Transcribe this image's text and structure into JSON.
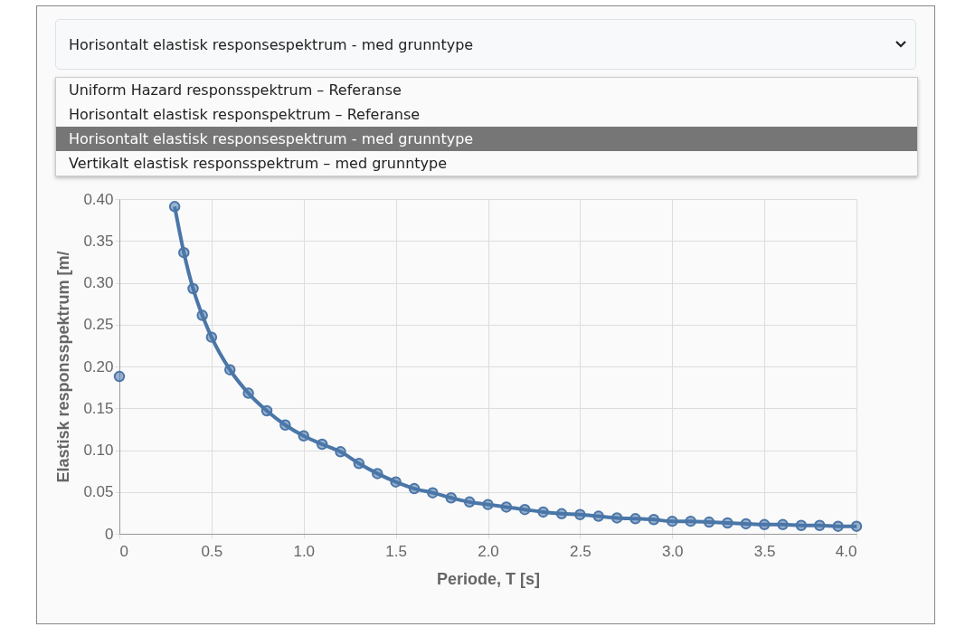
{
  "chart_data": {
    "type": "line",
    "title": "Horisontalt elastisk responsespektrum - med grunntype",
    "annotations": [
      "Uniform Hazard responsspektrum – Referanse",
      "Horisontalt elastisk responspektrum – Referanse",
      "Horisontalt elastisk responsespektrum - med grunntype",
      "Vertikalt elastisk responsspektrum – med grunntype"
    ],
    "xlabel": "Periode, T [s]",
    "ylabel": "Elastisk responsspektrum [m/",
    "x": [
      0,
      0.1,
      0.3,
      0.35,
      0.4,
      0.45,
      0.5,
      0.6,
      0.7,
      0.8,
      0.9,
      1.0,
      1.1,
      1.2,
      1.3,
      1.4,
      1.5,
      1.6,
      1.7,
      1.8,
      1.9,
      2.0,
      2.1,
      2.2,
      2.3,
      2.4,
      2.5,
      2.6,
      2.7,
      2.8,
      2.9,
      3.0,
      3.1,
      3.2,
      3.3,
      3.4,
      3.5,
      3.6,
      3.7,
      3.8,
      3.9,
      4.0
    ],
    "series": [
      {
        "color": "#4a76a8",
        "values": [
          0.188,
          null,
          0.391,
          0.336,
          0.293,
          0.261,
          0.235,
          0.196,
          0.168,
          0.147,
          0.13,
          0.117,
          0.107,
          0.098,
          0.084,
          0.072,
          0.062,
          0.054,
          0.049,
          0.043,
          0.038,
          0.035,
          0.032,
          0.029,
          0.026,
          0.024,
          0.023,
          0.021,
          0.019,
          0.018,
          0.017,
          0.015,
          0.015,
          0.014,
          0.013,
          0.012,
          0.011,
          0.011,
          0.01,
          0.01,
          0.009,
          0.009
        ]
      }
    ],
    "xlim": [
      0,
      4
    ],
    "xticks": [
      0,
      0.5,
      {
        "value": 1,
        "label": "1.0"
      },
      1.5,
      {
        "value": 2,
        "label": "2.0"
      },
      2.5,
      {
        "value": 3,
        "label": "3.0"
      },
      3.5,
      {
        "value": 4,
        "label": "4.0"
      }
    ],
    "ylim": [
      0,
      0.4
    ],
    "yticks": [
      0,
      0.05,
      {
        "value": 0.1,
        "label": "0.10"
      },
      0.15,
      {
        "value": 0.2,
        "label": "0.20"
      },
      0.25,
      {
        "value": 0.3,
        "label": "0.30"
      },
      0.35,
      {
        "value": 0.4,
        "label": "0.40"
      }
    ],
    "grid": true,
    "marker": "circle",
    "line_style": "solid"
  }
}
